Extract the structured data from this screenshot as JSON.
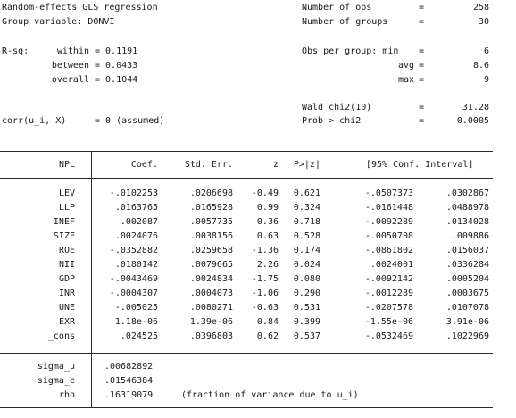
{
  "header": {
    "title": "Random-effects GLS regression",
    "group_variable": "Group variable: DONVI",
    "rsq_label": "R-sq:",
    "rsq": [
      {
        "label": "within",
        "value": "= 0.1191"
      },
      {
        "label": "between",
        "value": "= 0.0433"
      },
      {
        "label": "overall",
        "value": "= 0.1044"
      }
    ],
    "corr_label": "corr(u_i, X)",
    "corr_value": "= 0 (assumed)",
    "stats": [
      {
        "label": "Number of obs",
        "value": "258"
      },
      {
        "label": "Number of groups",
        "value": "30"
      },
      {
        "label": "Obs per group: min",
        "value": "6"
      },
      {
        "label": "avg",
        "value": "8.6"
      },
      {
        "label": "max",
        "value": "9"
      },
      {
        "label": "Wald chi2(10)",
        "value": "31.28"
      },
      {
        "label": "Prob > chi2",
        "value": "0.0005"
      }
    ],
    "equals": "="
  },
  "table": {
    "depvar": "NPL",
    "columns": [
      "Coef.",
      "Std. Err.",
      "z",
      "P>|z|",
      "[95% Conf. Interval]"
    ],
    "rows": [
      {
        "var": "LEV",
        "coef": "-.0102253",
        "se": ".0206698",
        "z": "-0.49",
        "p": "0.621",
        "lo": "-.0507373",
        "hi": ".0302867"
      },
      {
        "var": "LLP",
        "coef": ".0163765",
        "se": ".0165928",
        "z": "0.99",
        "p": "0.324",
        "lo": "-.0161448",
        "hi": ".0488978"
      },
      {
        "var": "INEF",
        "coef": ".002087",
        "se": ".0057735",
        "z": "0.36",
        "p": "0.718",
        "lo": "-.0092289",
        "hi": ".0134028"
      },
      {
        "var": "SIZE",
        "coef": ".0024076",
        "se": ".0038156",
        "z": "0.63",
        "p": "0.528",
        "lo": "-.0050708",
        "hi": ".009886"
      },
      {
        "var": "ROE",
        "coef": "-.0352882",
        "se": ".0259658",
        "z": "-1.36",
        "p": "0.174",
        "lo": "-.0861802",
        "hi": ".0156037"
      },
      {
        "var": "NII",
        "coef": ".0180142",
        "se": ".0079665",
        "z": "2.26",
        "p": "0.024",
        "lo": ".0024001",
        "hi": ".0336284"
      },
      {
        "var": "GDP",
        "coef": "-.0043469",
        "se": ".0024834",
        "z": "-1.75",
        "p": "0.080",
        "lo": "-.0092142",
        "hi": ".0005204"
      },
      {
        "var": "INR",
        "coef": "-.0004307",
        "se": ".0004073",
        "z": "-1.06",
        "p": "0.290",
        "lo": "-.0012289",
        "hi": ".0003675"
      },
      {
        "var": "UNE",
        "coef": "-.005025",
        "se": ".0080271",
        "z": "-0.63",
        "p": "0.531",
        "lo": "-.0207578",
        "hi": ".0107078"
      },
      {
        "var": "EXR",
        "coef": "1.18e-06",
        "se": "1.39e-06",
        "z": "0.84",
        "p": "0.399",
        "lo": "-1.55e-06",
        "hi": "3.91e-06"
      },
      {
        "var": "_cons",
        "coef": ".024525",
        "se": ".0396803",
        "z": "0.62",
        "p": "0.537",
        "lo": "-.0532469",
        "hi": ".1022969"
      }
    ],
    "sigma": [
      {
        "var": "sigma_u",
        "value": ".00682892"
      },
      {
        "var": "sigma_e",
        "value": ".01546384"
      },
      {
        "var": "rho",
        "value": ".16319079"
      }
    ],
    "rho_note": "(fraction of variance due to u_i)"
  }
}
